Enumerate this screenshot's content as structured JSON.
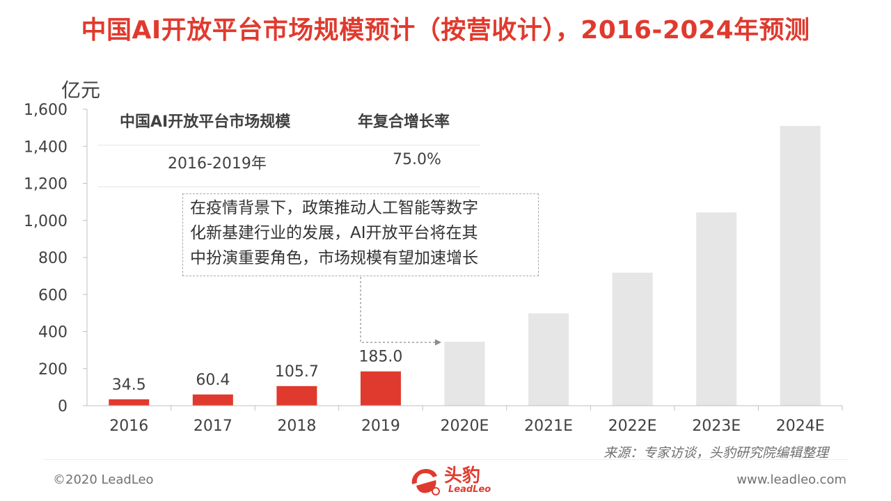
{
  "title": "中国AI开放平台市场规模预计（按营收计），2016-2024年预测",
  "cagr_table": {
    "header_left": "中国AI开放平台市场规模",
    "header_right": "年复合增长率",
    "period": "2016-2019年",
    "rate": "75.0%"
  },
  "annotation": {
    "lines": [
      "在疫情背景下，政策推动人工智能等数字",
      "化新基建行业的发展，AI开放平台将在其",
      "中扮演重要角色，市场规模有望加速增长"
    ]
  },
  "source": "来源：专家访谈，头豹研究院编辑整理",
  "footer": {
    "copyright": "©2020 LeadLeo",
    "website": "www.leadleo.com",
    "logo_text": "头豹",
    "logo_sub": "LeadLeo"
  },
  "colors": {
    "accent": "#e03a2e",
    "forecast": "#e6e6e6",
    "axis": "#bfbfbf"
  },
  "chart_data": {
    "type": "bar",
    "ylabel": "亿元",
    "ylim": [
      0,
      1600
    ],
    "yticks": [
      0,
      200,
      400,
      600,
      800,
      1000,
      1200,
      1400,
      1600
    ],
    "ytick_labels": [
      "0",
      "200",
      "400",
      "600",
      "800",
      "1,000",
      "1,200",
      "1,400",
      "1,600"
    ],
    "categories": [
      "2016",
      "2017",
      "2018",
      "2019",
      "2020E",
      "2021E",
      "2022E",
      "2023E",
      "2024E"
    ],
    "values": [
      34.5,
      60.4,
      105.7,
      185.0,
      345,
      498,
      718,
      1043,
      1510
    ],
    "data_labels": [
      "34.5",
      "60.4",
      "105.7",
      "185.0",
      "",
      "",
      "",
      "",
      ""
    ],
    "forecast": [
      false,
      false,
      false,
      false,
      true,
      true,
      true,
      true,
      true
    ]
  }
}
